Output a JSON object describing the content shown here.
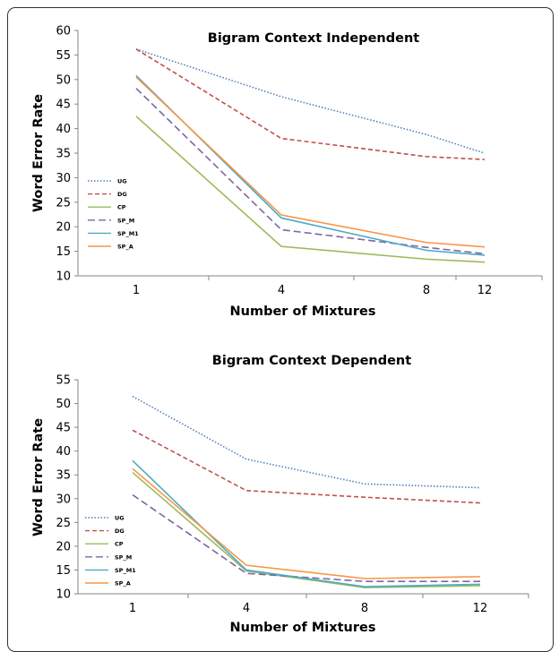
{
  "chart_data": [
    {
      "type": "line",
      "title": "Bigram Context Independent",
      "xlabel": "Number of Mixtures",
      "ylabel": "Word Error Rate",
      "categories": [
        "1",
        "4",
        "8",
        "12"
      ],
      "ylim": [
        10,
        60
      ],
      "yticks": [
        "10",
        "15",
        "20",
        "25",
        "30",
        "35",
        "40",
        "45",
        "50",
        "55",
        "60"
      ],
      "grid": false,
      "legend": "left-middle",
      "series": [
        {
          "name": "UG",
          "values": [
            56.2,
            46.5,
            38.8,
            35.0
          ],
          "color": "#4f81bd",
          "dash": "dotted"
        },
        {
          "name": "DG",
          "values": [
            56.2,
            38.0,
            34.3,
            33.7
          ],
          "color": "#c0504d",
          "dash": "dashed"
        },
        {
          "name": "CP",
          "values": [
            42.5,
            16.0,
            13.4,
            12.8
          ],
          "color": "#9bbb59",
          "dash": "solid"
        },
        {
          "name": "SP_M",
          "values": [
            48.2,
            19.4,
            15.8,
            14.5
          ],
          "color": "#8064a2",
          "dash": "longdash"
        },
        {
          "name": "SP_M1",
          "values": [
            50.8,
            21.8,
            15.2,
            14.2
          ],
          "color": "#4bacc6",
          "dash": "solid"
        },
        {
          "name": "SP_A",
          "values": [
            50.5,
            22.4,
            16.8,
            15.9
          ],
          "color": "#f79646",
          "dash": "solid"
        }
      ]
    },
    {
      "type": "line",
      "title": "Bigram Context Dependent",
      "xlabel": "Number of Mixtures",
      "ylabel": "Word Error Rate",
      "categories": [
        "1",
        "4",
        "8",
        "12"
      ],
      "ylim": [
        10,
        55
      ],
      "yticks": [
        "10",
        "15",
        "20",
        "25",
        "30",
        "35",
        "40",
        "45",
        "50",
        "55"
      ],
      "grid": false,
      "legend": "left-bottom",
      "series": [
        {
          "name": "UG",
          "values": [
            51.5,
            38.3,
            33.1,
            32.3
          ],
          "color": "#4f81bd",
          "dash": "dotted"
        },
        {
          "name": "DG",
          "values": [
            44.4,
            31.7,
            30.3,
            29.1
          ],
          "color": "#c0504d",
          "dash": "dashed"
        },
        {
          "name": "CP",
          "values": [
            35.5,
            14.8,
            11.3,
            11.7
          ],
          "color": "#9bbb59",
          "dash": "solid"
        },
        {
          "name": "SP_M",
          "values": [
            30.8,
            14.3,
            12.6,
            12.6
          ],
          "color": "#8064a2",
          "dash": "longdash"
        },
        {
          "name": "SP_M1",
          "values": [
            38.0,
            15.0,
            11.5,
            12.0
          ],
          "color": "#4bacc6",
          "dash": "solid"
        },
        {
          "name": "SP_A",
          "values": [
            36.3,
            16.0,
            13.2,
            13.6
          ],
          "color": "#f79646",
          "dash": "solid"
        }
      ]
    }
  ]
}
